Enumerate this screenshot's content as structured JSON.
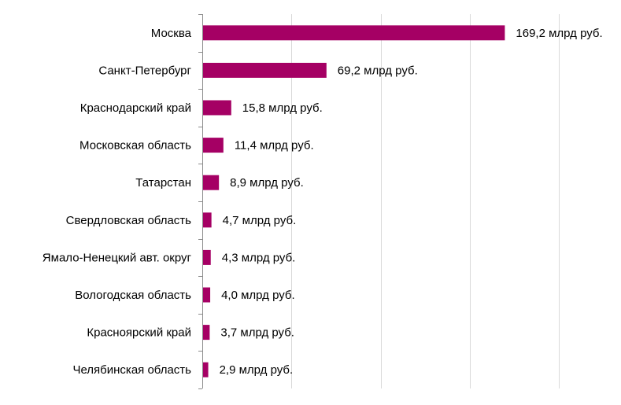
{
  "chart_data": {
    "type": "bar",
    "orientation": "horizontal",
    "categories": [
      "Москва",
      "Санкт-Петербург",
      "Краснодарский край",
      "Московская область",
      "Татарстан",
      "Свердловская область",
      "Ямало-Ненецкий авт. округ",
      "Вологодская область",
      "Красноярский край",
      "Челябинская область"
    ],
    "values": [
      169.2,
      69.2,
      15.8,
      11.4,
      8.9,
      4.7,
      4.3,
      4.0,
      3.7,
      2.9
    ],
    "data_labels": [
      "169,2 млрд руб.",
      "69,2 млрд руб.",
      "15,8 млрд руб.",
      "11,4 млрд руб.",
      "8,9 млрд руб.",
      "4,7 млрд руб.",
      "4,3 млрд руб.",
      "4,0 млрд руб.",
      "3,7 млрд руб.",
      "2,9 млрд руб."
    ],
    "title": "",
    "xlabel": "",
    "ylabel": "",
    "xlim": [
      0,
      200
    ],
    "grid": true,
    "legend": "none",
    "colors": {
      "bar": "#a50064",
      "grid": "#d9d9d9",
      "axis": "#8c8c8c",
      "text": "#000000"
    }
  }
}
